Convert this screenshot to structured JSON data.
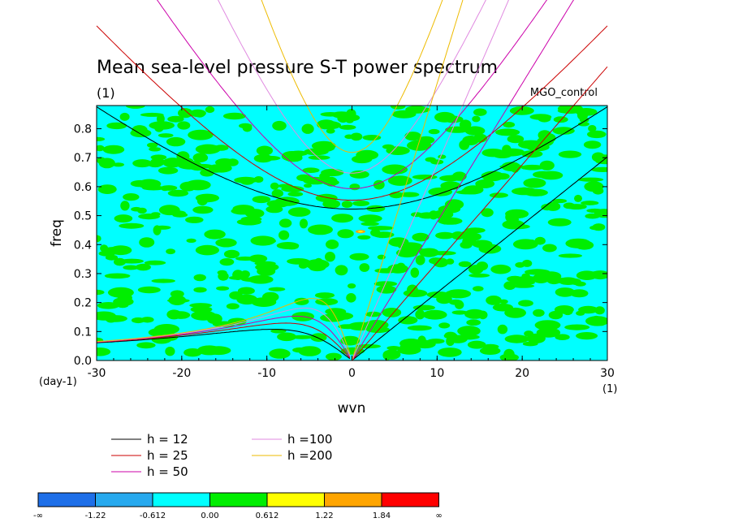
{
  "chart_data": {
    "type": "heatmap",
    "title": "Mean sea-level pressure S-T power spectrum",
    "subtitle": "(1)",
    "run_label": "MGO_control",
    "xlabel": "wvn",
    "ylabel": "freq",
    "x_unit": "(1)",
    "y_unit": "(day-1)",
    "xlim": [
      -30,
      30
    ],
    "ylim": [
      0.0,
      0.88
    ],
    "x_ticks": [
      "-30",
      "-20",
      "-10",
      "0",
      "10",
      "20",
      "30"
    ],
    "y_ticks": [
      "0.0",
      "0.1",
      "0.2",
      "0.3",
      "0.4",
      "0.5",
      "0.6",
      "0.7",
      "0.8"
    ],
    "background_fill": "mixed cyan (-0.612 to 0.00) and green (0.00 to 0.612) noise",
    "colorbar": {
      "labels": [
        "-∞",
        "-1.22",
        "-0.612",
        "0.00",
        "0.612",
        "1.22",
        "1.84",
        "∞"
      ],
      "colors": [
        "#1e6fe8",
        "#27a9ee",
        "#00ffff",
        "#00ee00",
        "#ffff00",
        "#ffa500",
        "#ff0000"
      ]
    },
    "dispersion_curves": [
      {
        "label": "h = 12",
        "color": "#000000"
      },
      {
        "label": "h = 25",
        "color": "#cc0000"
      },
      {
        "label": "h = 50",
        "color": "#cc00aa"
      },
      {
        "label": "h =100",
        "color": "#e08ae0"
      },
      {
        "label": "h =200",
        "color": "#eebb00"
      }
    ]
  }
}
